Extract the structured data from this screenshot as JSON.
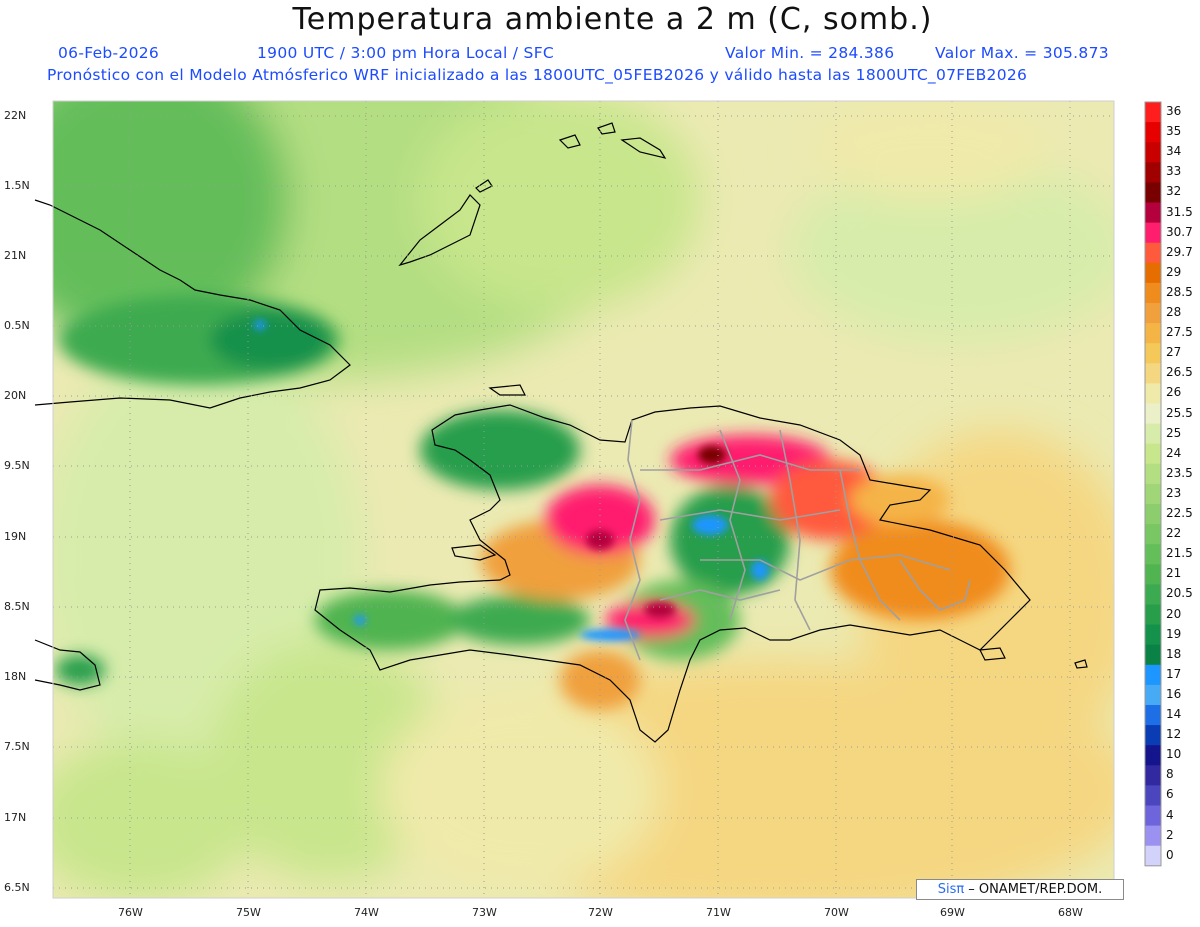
{
  "title": "Temperatura ambiente a 2 m (C, somb.)",
  "subtitle": {
    "date": "06-Feb-2026",
    "time": "1900 UTC / 3:00 pm Hora Local / SFC",
    "min": "Valor Min. = 284.386",
    "max": "Valor Max. = 305.873",
    "model": "Pronóstico con el Modelo Atmósferico WRF inicializado a las 1800UTC_05FEB2026 y válido hasta las  1800UTC_07FEB2026"
  },
  "lat_labels": [
    "22N",
    "1.5N",
    "21N",
    "0.5N",
    "20N",
    "9.5N",
    "19N",
    "8.5N",
    "18N",
    "7.5N",
    "17N",
    "6.5N"
  ],
  "lon_labels": [
    "76W",
    "75W",
    "74W",
    "73W",
    "72W",
    "71W",
    "70W",
    "69W",
    "68W"
  ],
  "colorbar": {
    "labels": [
      "36",
      "35",
      "34",
      "33",
      "32",
      "31.5",
      "30.7",
      "29.7",
      "29",
      "28.5",
      "28",
      "27.5",
      "27",
      "26.5",
      "26",
      "25.5",
      "25",
      "24",
      "23.5",
      "23",
      "22.5",
      "22",
      "21.5",
      "21",
      "20.5",
      "20",
      "19",
      "18",
      "17",
      "16",
      "14",
      "12",
      "10",
      "8",
      "6",
      "4",
      "2",
      "0"
    ],
    "colors": [
      "#ff1e1e",
      "#e60000",
      "#c80000",
      "#a00000",
      "#780000",
      "#b4003c",
      "#ff1e6e",
      "#ff5a3c",
      "#e66e00",
      "#f08c1e",
      "#f0a03c",
      "#f5b446",
      "#f5c85a",
      "#f5d782",
      "#f0eaaa",
      "#ebf0c8",
      "#d7ecaa",
      "#c8e68c",
      "#b4de82",
      "#a0d678",
      "#8cce6e",
      "#78c664",
      "#64be5a",
      "#50b450",
      "#3caa50",
      "#289e4b",
      "#14914b",
      "#0a8246",
      "#1e96ff",
      "#46aaf5",
      "#1e6ee6",
      "#0a3cb4",
      "#14148c",
      "#3228a0",
      "#4b46be",
      "#6e64dc",
      "#9b91f0",
      "#d2d2fa"
    ]
  },
  "credit": {
    "brand": "Sisπ",
    "org": "– ONAMET/REP.DOM."
  },
  "colors": {
    "title_text": "#111111",
    "subtitle_text": "#1d4bff",
    "coast": "#000000",
    "borders": "#a0a0a0",
    "grid": "#9a9a9a"
  }
}
